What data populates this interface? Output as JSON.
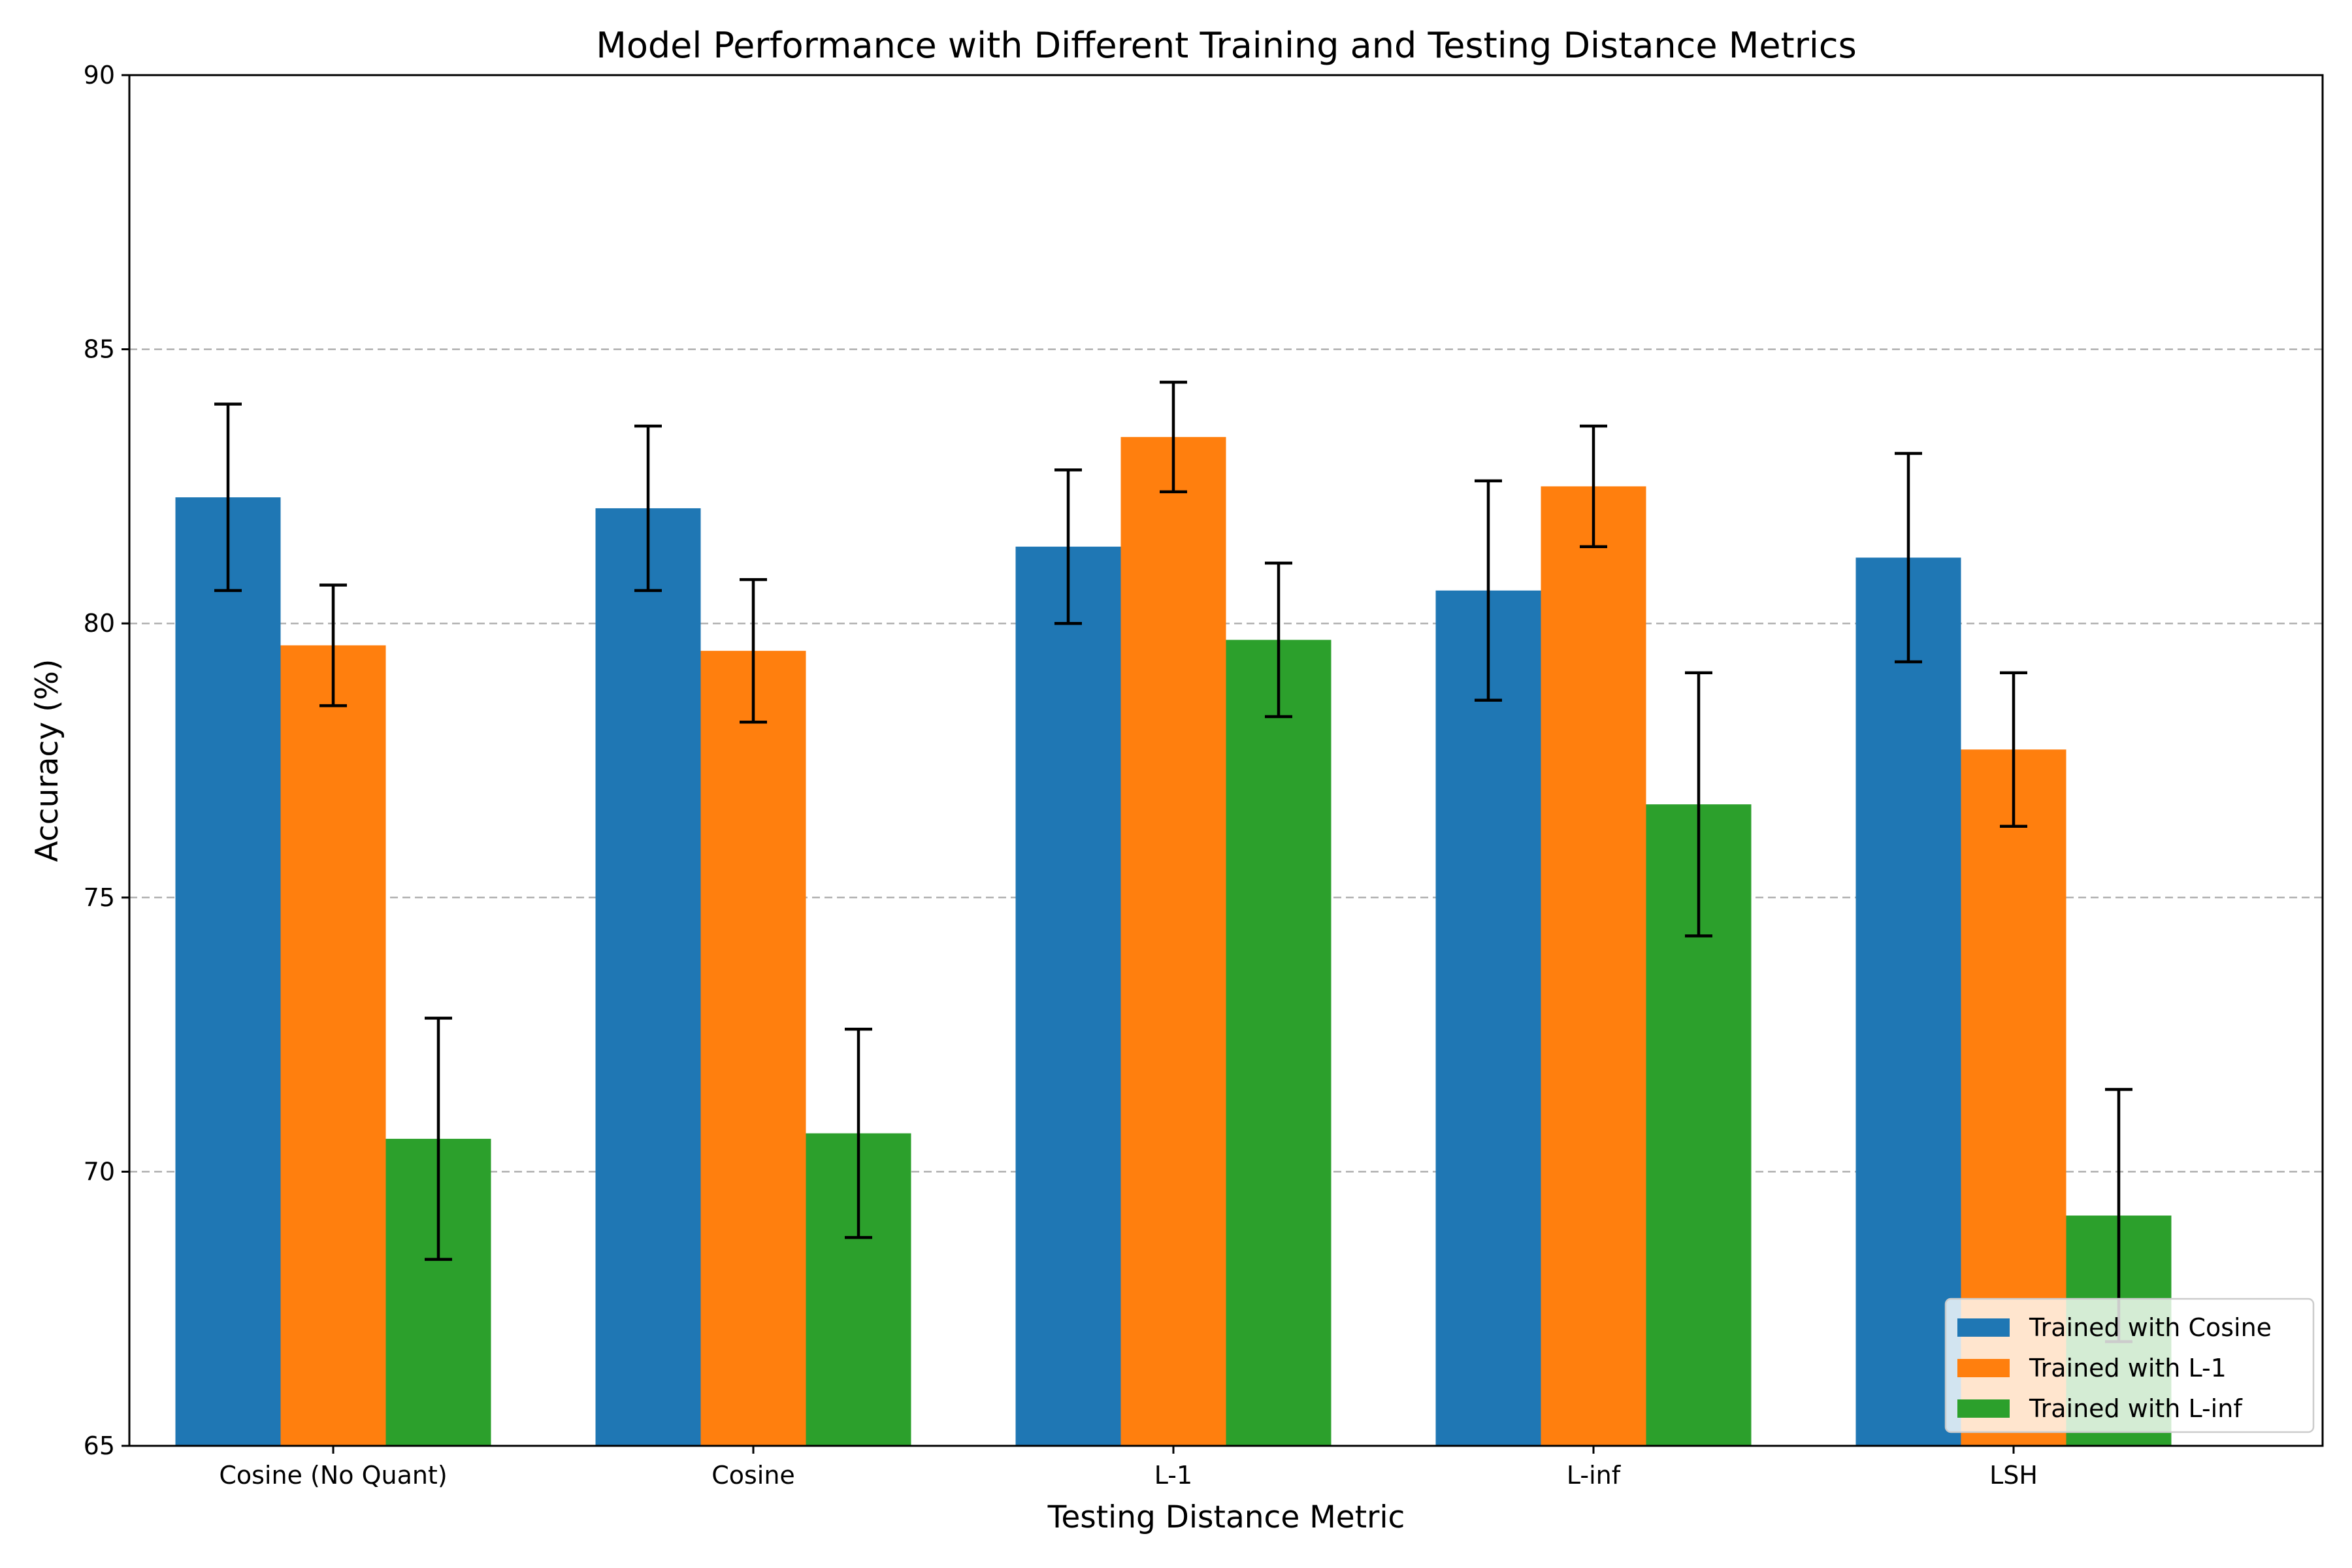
{
  "chart_data": {
    "type": "bar",
    "title": "Model Performance with Different Training and Testing Distance Metrics",
    "xlabel": "Testing Distance Metric",
    "ylabel": "Accuracy (%)",
    "ylim": [
      65,
      90
    ],
    "yticks": [
      65,
      70,
      75,
      80,
      85,
      90
    ],
    "grid": {
      "axis": "y",
      "style": "dashed",
      "color": "#b0b0b0"
    },
    "legend_position": "bottom-right",
    "categories": [
      "Cosine (No Quant)",
      "Cosine",
      "L-1",
      "L-inf",
      "LSH"
    ],
    "series": [
      {
        "name": "Trained with Cosine",
        "color": "#1f77b4",
        "values": [
          82.3,
          82.1,
          81.4,
          80.6,
          81.2
        ],
        "errors": [
          1.7,
          1.5,
          1.4,
          2.0,
          1.9
        ]
      },
      {
        "name": "Trained with L-1",
        "color": "#ff7f0e",
        "values": [
          79.6,
          79.5,
          83.4,
          82.5,
          77.7
        ],
        "errors": [
          1.1,
          1.3,
          1.0,
          1.1,
          1.4
        ]
      },
      {
        "name": "Trained with L-inf",
        "color": "#2ca02c",
        "values": [
          70.6,
          70.7,
          79.7,
          76.7,
          69.2
        ],
        "errors": [
          2.2,
          1.9,
          1.4,
          2.4,
          2.3
        ]
      }
    ]
  }
}
